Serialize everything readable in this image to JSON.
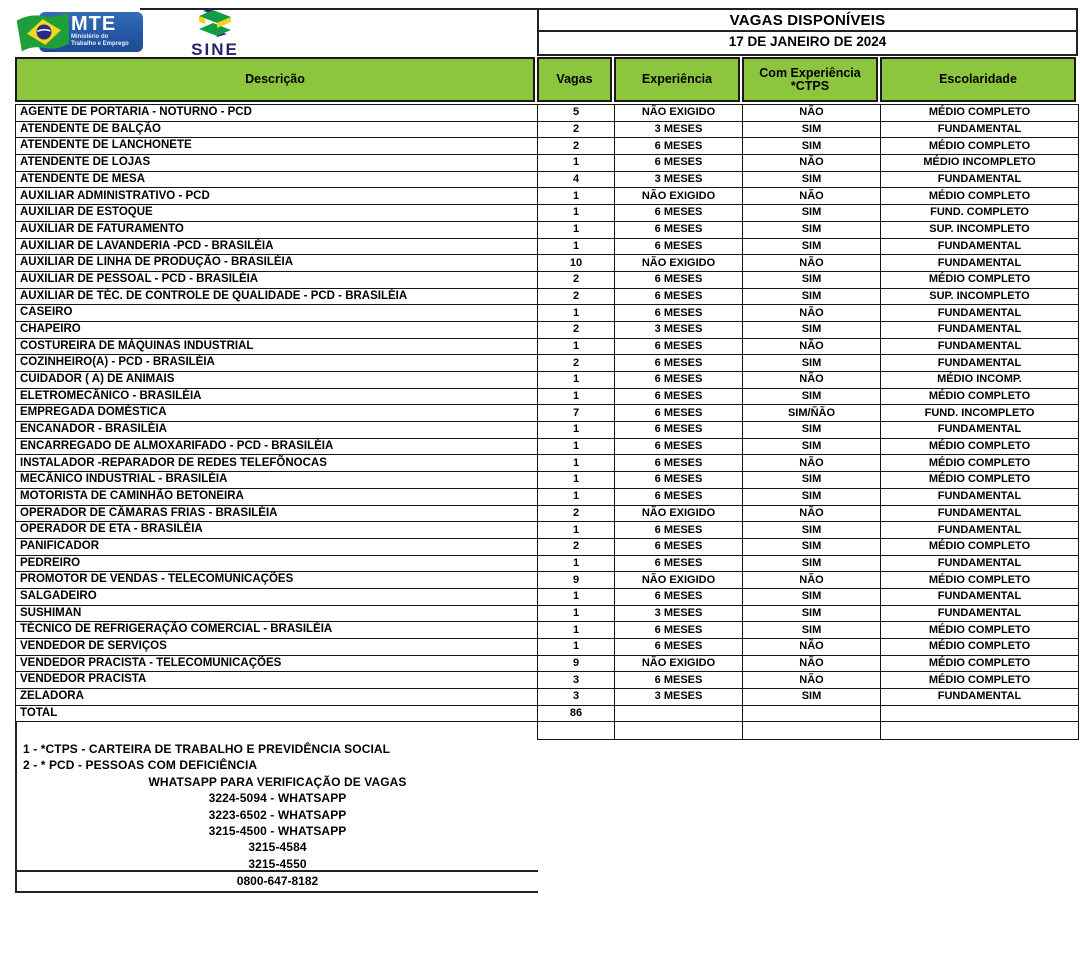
{
  "header": {
    "mte": {
      "title": "MTE",
      "subtitle": "Ministério do\nTrabalho e Emprego"
    },
    "sine": {
      "label": "SINE"
    },
    "title": "VAGAS DISPONÍVEIS",
    "date": "17 DE JANEIRO DE 2024"
  },
  "table": {
    "columns": [
      "Descrição",
      "Vagas",
      "Experiência",
      "Com Experiência\n*CTPS",
      "Escolaridade"
    ],
    "rows": [
      [
        "AGENTE DE PORTARIA - NOTURNO - PCD",
        "5",
        "NÃO EXIGIDO",
        "NÃO",
        "MÉDIO COMPLETO"
      ],
      [
        "ATENDENTE DE BALÇÃO",
        "2",
        "3 MESES",
        "SIM",
        "FUNDAMENTAL"
      ],
      [
        "ATENDENTE DE LANCHONETE",
        "2",
        "6 MESES",
        "SIM",
        "MÉDIO COMPLETO"
      ],
      [
        "ATENDENTE DE LOJAS",
        "1",
        "6 MESES",
        "NÃO",
        "MÉDIO INCOMPLETO"
      ],
      [
        "ATENDENTE DE MESA",
        "4",
        "3 MESES",
        "SIM",
        "FUNDAMENTAL"
      ],
      [
        "AUXILIAR ADMINISTRATIVO -  PCD",
        "1",
        "NÃO EXIGIDO",
        "NÃO",
        "MÉDIO COMPLETO"
      ],
      [
        "AUXILIAR DE ESTOQUE",
        "1",
        "6 MESES",
        "SIM",
        "FUND. COMPLETO"
      ],
      [
        "AUXILIAR DE FATURAMENTO",
        "1",
        "6 MESES",
        "SIM",
        "SUP. INCOMPLETO"
      ],
      [
        "AUXILIAR DE LAVANDERIA -PCD - BRASILÉIA",
        "1",
        "6 MESES",
        "SIM",
        "FUNDAMENTAL"
      ],
      [
        "AUXILIAR DE LINHA DE PRODUÇÃO - BRASILÉIA",
        "10",
        "NÃO EXIGIDO",
        "NÃO",
        "FUNDAMENTAL"
      ],
      [
        "AUXILIAR DE PESSOAL - PCD - BRASILÉIA",
        "2",
        "6 MESES",
        "SIM",
        "MÉDIO COMPLETO"
      ],
      [
        "AUXILIAR DE TÉC. DE CONTROLE DE QUALIDADE - PCD - BRASILÉIA",
        "2",
        "6 MESES",
        "SIM",
        "SUP. INCOMPLETO"
      ],
      [
        "CASEIRO",
        "1",
        "6 MESES",
        "NÃO",
        "FUNDAMENTAL"
      ],
      [
        "CHAPEIRO",
        "2",
        "3 MESES",
        "SIM",
        "FUNDAMENTAL"
      ],
      [
        "COSTUREIRA DE MÁQUINAS INDUSTRIAL",
        "1",
        "6 MESES",
        "NÃO",
        "FUNDAMENTAL"
      ],
      [
        "COZINHEIRO(A) - PCD - BRASILÉIA",
        "2",
        "6 MESES",
        "SIM",
        "FUNDAMENTAL"
      ],
      [
        "CUIDADOR ( A) DE ANIMAIS",
        "1",
        "6 MESES",
        "NÃO",
        "MÉDIO INCOMP."
      ],
      [
        "ELETROMECÂNICO - BRASILÉIA",
        "1",
        "6 MESES",
        "SIM",
        "MÉDIO COMPLETO"
      ],
      [
        "EMPREGADA DOMÉSTICA",
        "7",
        "6 MESES",
        "SIM/ÑÃO",
        "FUND. INCOMPLETO"
      ],
      [
        "ENCANADOR - BRASILÉIA",
        "1",
        "6 MESES",
        "SIM",
        "FUNDAMENTAL"
      ],
      [
        "ENCARREGADO DE ALMOXARIFADO - PCD - BRASILÉIA",
        "1",
        "6 MESES",
        "SIM",
        "MÉDIO COMPLETO"
      ],
      [
        "INSTALADOR -REPARADOR DE REDES TELEFÕNOCAS",
        "1",
        "6 MESES",
        "NÃO",
        "MÉDIO COMPLETO"
      ],
      [
        "MECÂNICO INDUSTRIAL - BRASILÉIA",
        "1",
        "6 MESES",
        "SIM",
        "MÉDIO COMPLETO"
      ],
      [
        "MOTORISTA DE CAMINHÃO BETONEIRA",
        "1",
        "6 MESES",
        "SIM",
        "FUNDAMENTAL"
      ],
      [
        "OPERADOR DE CÂMARAS FRIAS - BRASILÉIA",
        "2",
        "NÃO EXIGIDO",
        "NÃO",
        "FUNDAMENTAL"
      ],
      [
        "OPERADOR DE ETA - BRASILÉIA",
        "1",
        "6 MESES",
        "SIM",
        "FUNDAMENTAL"
      ],
      [
        "PANIFICADOR",
        "2",
        "6 MESES",
        "SIM",
        "MÉDIO COMPLETO"
      ],
      [
        "PEDREIRO",
        "1",
        "6 MESES",
        "SIM",
        "FUNDAMENTAL"
      ],
      [
        "PROMOTOR DE VENDAS - TELECOMUNICAÇÕES",
        "9",
        "NÃO EXIGIDO",
        "NÃO",
        "MÉDIO COMPLETO"
      ],
      [
        "SALGADEIRO",
        "1",
        "6 MESES",
        "SIM",
        "FUNDAMENTAL"
      ],
      [
        "SUSHIMAN",
        "1",
        "3 MESES",
        "SIM",
        "FUNDAMENTAL"
      ],
      [
        "TÉCNICO DE REFRIGERAÇÃO COMERCIAL - BRASILÉIA",
        "1",
        "6 MESES",
        "SIM",
        "MÉDIO COMPLETO"
      ],
      [
        "VENDEDOR DE SERVIÇOS",
        "1",
        "6 MESES",
        "NÃO",
        "MÉDIO COMPLETO"
      ],
      [
        "VENDEDOR PRACISTA - TELECOMUNICAÇÕES",
        "9",
        "NÃO EXIGIDO",
        "NÃO",
        "MÉDIO COMPLETO"
      ],
      [
        "VENDEDOR PRACISTA",
        "3",
        "6 MESES",
        "NÃO",
        "MÉDIO COMPLETO"
      ],
      [
        "ZELADORA",
        "3",
        "3 MESES",
        "SIM",
        "FUNDAMENTAL"
      ],
      [
        "TOTAL",
        "86",
        "",
        "",
        ""
      ]
    ]
  },
  "footer": {
    "notes": [
      "1 - *CTPS - CARTEIRA DE TRABALHO E PREVIDÊNCIA SOCIAL",
      "2 - * PCD - PESSOAS COM DEFICIÊNCIA"
    ],
    "whatsapp_title": "WHATSAPP PARA VERIFICAÇÃO DE VAGAS",
    "phones": [
      "3224-5094 - WHATSAPP",
      "3223-6502 - WHATSAPP",
      "3215-4500 - WHATSAPP",
      "3215-4584",
      "3215-4550"
    ],
    "hotline": "0800-647-8182"
  },
  "colors": {
    "header_green": "#8CC63E",
    "mte_blue": "#2458A6",
    "sine_navy": "#26246E",
    "logo_green": "#2F9E3F"
  }
}
